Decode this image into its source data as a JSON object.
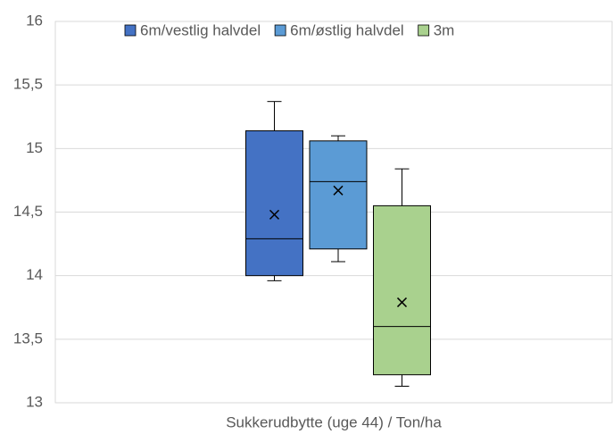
{
  "chart_data": {
    "type": "box",
    "xlabel": "Sukkerudbytte (uge 44) / Ton/ha",
    "series": [
      {
        "name": "6m/vestlig halvdel",
        "color": "#4472c4",
        "min": 13.96,
        "q1": 14.0,
        "median": 14.29,
        "q3": 15.14,
        "max": 15.37,
        "mean": 14.48
      },
      {
        "name": "6m/østlig halvdel",
        "color": "#5b9bd5",
        "min": 14.11,
        "q1": 14.21,
        "median": 14.74,
        "q3": 15.06,
        "max": 15.1,
        "mean": 14.67
      },
      {
        "name": "3m",
        "color": "#a9d18e",
        "min": 13.13,
        "q1": 13.22,
        "median": 13.6,
        "q3": 14.55,
        "max": 14.84,
        "mean": 13.79
      }
    ],
    "ylim": [
      13,
      16
    ],
    "yticks": [
      13,
      {
        "value": 13.5,
        "label": "13,5"
      },
      14,
      {
        "value": 14.5,
        "label": "14,5"
      },
      15,
      {
        "value": 15.5,
        "label": "15,5"
      },
      16
    ],
    "grid": true
  }
}
